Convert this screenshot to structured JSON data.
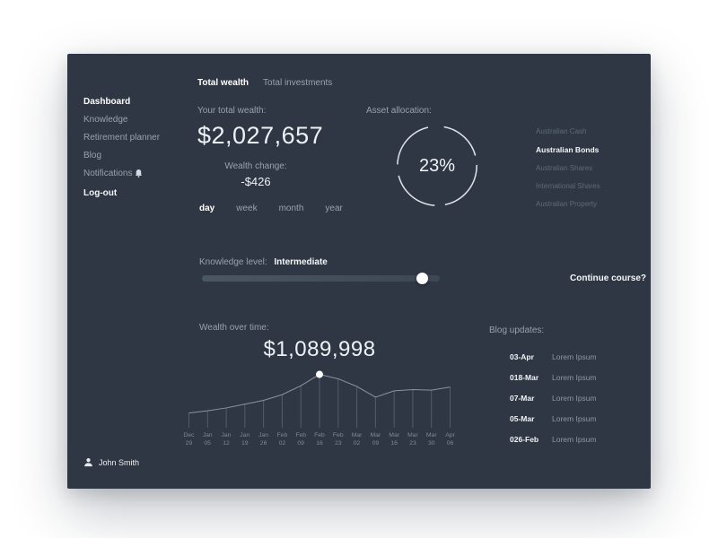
{
  "sidebar": {
    "items": [
      "Dashboard",
      "Knowledge",
      "Retirement planner",
      "Blog",
      "Notifications"
    ],
    "active_item": "Dashboard",
    "logout": "Log-out",
    "user": "John Smith"
  },
  "header": {
    "tabs": [
      "Total wealth",
      "Total investments"
    ],
    "active_tab": "Total wealth"
  },
  "wealth": {
    "label": "Your total wealth:",
    "value": "$2,027,657",
    "change_label": "Wealth change:",
    "change_value": "-$426",
    "periods": [
      "day",
      "week",
      "month",
      "year"
    ],
    "active_period": "day"
  },
  "allocation": {
    "label": "Asset allocation:",
    "percent": "23%",
    "assets": [
      "Australian Cash",
      "Australian Bonds",
      "Australian Shares",
      "International Shares",
      "Australian Property"
    ],
    "active_asset": "Australian Bonds"
  },
  "knowledge": {
    "label": "Knowledge level:",
    "level": "Intermediate",
    "slider_percent": 93,
    "cta": "Continue course?"
  },
  "wealth_chart": {
    "label": "Wealth over time:"
  },
  "blog": {
    "label": "Blog updates:",
    "items": [
      {
        "date": "03-Apr",
        "title": "Lorem Ipsum"
      },
      {
        "date": "018-Mar",
        "title": "Lorem Ipsum"
      },
      {
        "date": "07-Mar",
        "title": "Lorem Ipsum"
      },
      {
        "date": "05-Mar",
        "title": "Lorem Ipsum"
      },
      {
        "date": "026-Feb",
        "title": "Lorem Ipsum"
      }
    ]
  },
  "chart_data": [
    {
      "type": "pie",
      "title": "Asset allocation",
      "center_label": "23%",
      "slices": [
        {
          "label": "Australian Bonds",
          "value": 23
        }
      ]
    },
    {
      "type": "line",
      "title": "Wealth over time",
      "highlight_label": "$1,089,998",
      "highlight_index": 7,
      "categories": [
        "Dec 29",
        "Jan 05",
        "Jan 12",
        "Jan 19",
        "Jan 26",
        "Feb 02",
        "Feb 09",
        "Feb 16",
        "Feb 23",
        "Mar 02",
        "Mar 09",
        "Mar 16",
        "Mar 23",
        "Mar 30",
        "Apr 06"
      ],
      "values": [
        968000,
        975000,
        984000,
        996000,
        1008000,
        1026000,
        1054000,
        1089998,
        1076000,
        1052000,
        1018000,
        1038000,
        1042000,
        1040000,
        1050000
      ],
      "ylim": [
        930000,
        1100000
      ],
      "xlabel": "",
      "ylabel": "",
      "grid": "vertical-only",
      "legend": "none"
    }
  ]
}
